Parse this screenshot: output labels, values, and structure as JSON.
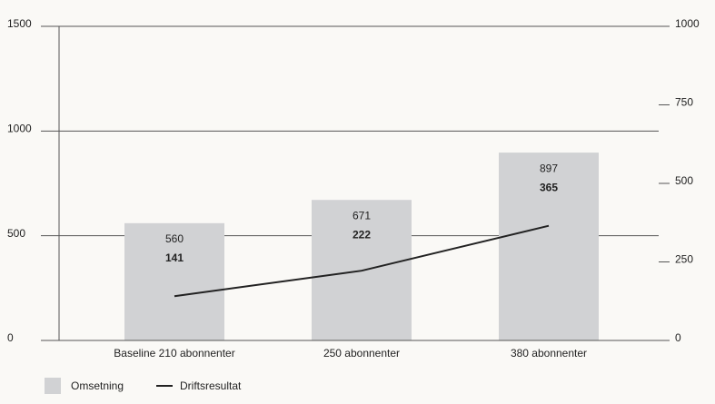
{
  "chart_data": {
    "type": "bar",
    "categories": [
      "Baseline 210 abonnenter",
      "250 abonnenter",
      "380 abonnenter"
    ],
    "series": [
      {
        "name": "Omsetning",
        "color": "#d1d2d4",
        "values": [
          560,
          671,
          897
        ]
      },
      {
        "name": "Driftsresultat",
        "color": "#222222",
        "type": "line",
        "axis": "y2",
        "values": [
          141,
          222,
          365
        ]
      }
    ],
    "ylim": [
      0,
      1500
    ],
    "yticks": [
      0,
      500,
      1000,
      1500
    ],
    "y2lim": [
      0,
      1000
    ],
    "y2ticks": [
      0,
      250,
      500,
      750,
      1000
    ],
    "grid": true,
    "legend": "bottom-left"
  }
}
